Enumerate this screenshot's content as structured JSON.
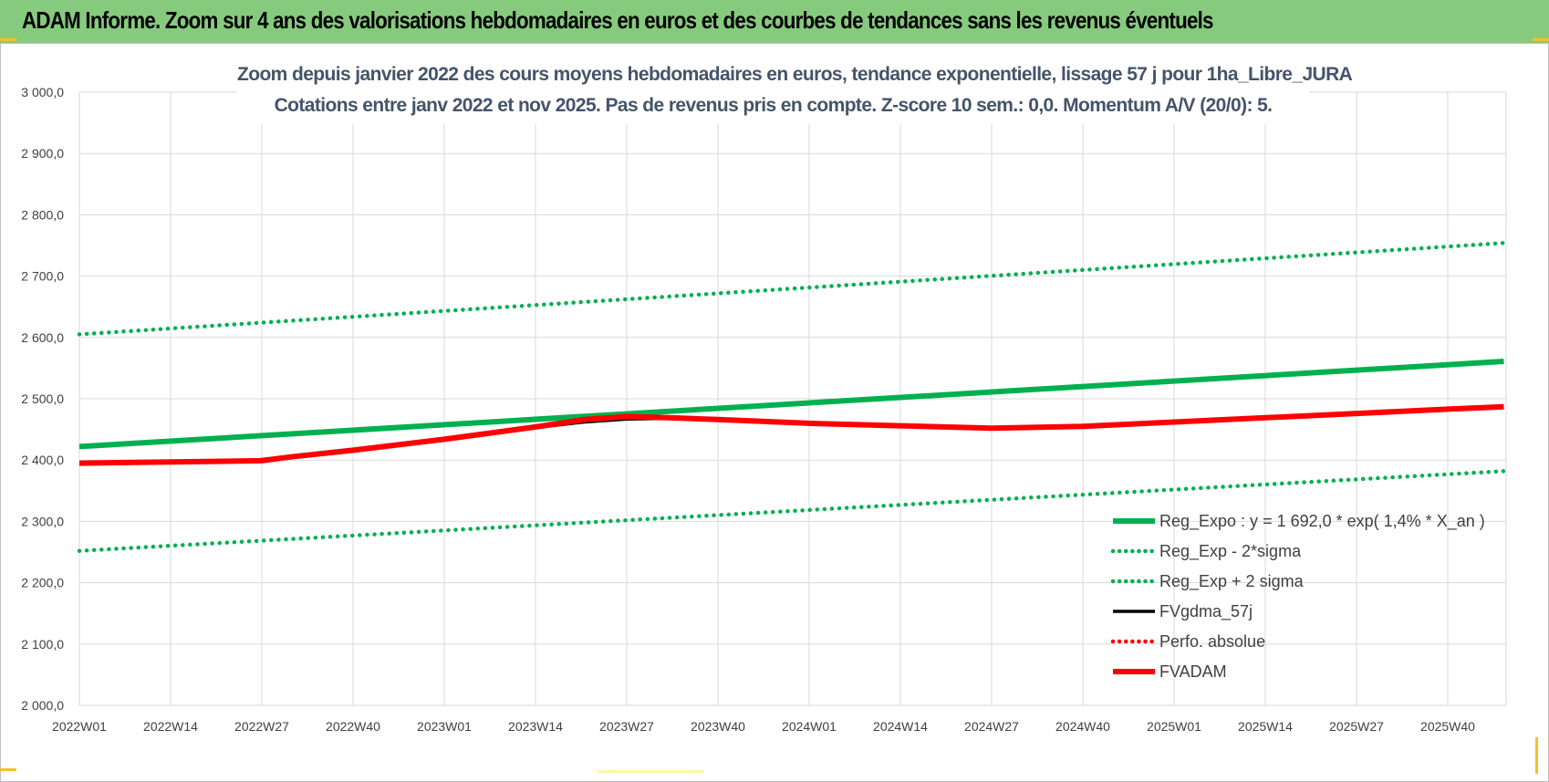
{
  "banner": {
    "title": "ADAM Informe. Zoom sur 4 ans des valorisations hebdomadaires en euros et des courbes de tendances sans les revenus éventuels"
  },
  "colors": {
    "banner": "#86cb7d",
    "trend": "#00b050",
    "band": "#00b050",
    "fvadam": "#ff0000",
    "fvgdma": "#000000",
    "perfo": "#ff0000",
    "title_text": "#44546a",
    "gridline": "#d9d9d9"
  },
  "chart_data": {
    "type": "line",
    "title_line1": "Zoom depuis janvier 2022 des cours moyens hebdomadaires en euros, tendance exponentielle, lissage 57 j pour 1ha_Libre_JURA",
    "title_line2": "Cotations entre janv 2022 et nov 2025. Pas de revenus pris en compte. Z-score 10 sem.: 0,0. Momentum A/V (20/0): 5.",
    "x_axis": {
      "tick_labels": [
        "2022W01",
        "2022W14",
        "2022W27",
        "2022W40",
        "2023W01",
        "2023W14",
        "2023W27",
        "2023W40",
        "2024W01",
        "2024W14",
        "2024W27",
        "2024W40",
        "2025W01",
        "2025W14",
        "2025W27",
        "2025W40"
      ],
      "last_index": 203
    },
    "y_axis": {
      "min": 2000,
      "max": 3000,
      "step": 100,
      "tick_labels": [
        "2 000,0",
        "2 100,0",
        "2 200,0",
        "2 300,0",
        "2 400,0",
        "2 500,0",
        "2 600,0",
        "2 700,0",
        "2 800,0",
        "2 900,0",
        "3 000,0"
      ]
    },
    "grid": true,
    "legend_position": "bottom-right",
    "series": [
      {
        "name": "Reg_Expo : y = 1 692,0 * exp( 1,4% *  X_an )",
        "style": "solid-thick",
        "color": "#00b050",
        "points": [
          [
            0,
            2422
          ],
          [
            203,
            2561
          ]
        ]
      },
      {
        "name": "Reg_Exp - 2*sigma",
        "style": "dotted",
        "color": "#00b050",
        "points": [
          [
            0,
            2252
          ],
          [
            203,
            2382
          ]
        ]
      },
      {
        "name": "Reg_Exp + 2 sigma",
        "style": "dotted",
        "color": "#00b050",
        "points": [
          [
            0,
            2605
          ],
          [
            203,
            2754
          ]
        ]
      },
      {
        "name": "FVgdma_57j",
        "style": "solid",
        "color": "#000000",
        "points": [
          [
            0,
            2395
          ],
          [
            13,
            2396
          ],
          [
            24,
            2398
          ],
          [
            26,
            2401
          ],
          [
            30,
            2406
          ],
          [
            39,
            2417
          ],
          [
            52,
            2435
          ],
          [
            65,
            2453
          ],
          [
            72,
            2462
          ],
          [
            78,
            2467
          ],
          [
            84,
            2468
          ],
          [
            91,
            2466
          ],
          [
            104,
            2460
          ],
          [
            117,
            2455
          ],
          [
            130,
            2453
          ],
          [
            143,
            2455
          ],
          [
            156,
            2462
          ],
          [
            169,
            2469
          ],
          [
            182,
            2476
          ],
          [
            195,
            2483
          ],
          [
            203,
            2487
          ]
        ]
      },
      {
        "name": "Perfo. absolue",
        "style": "dotted",
        "color": "#ff0000",
        "points": []
      },
      {
        "name": "FVADAM",
        "style": "solid-thick",
        "color": "#ff0000",
        "points": [
          [
            0,
            2395
          ],
          [
            13,
            2397
          ],
          [
            26,
            2399
          ],
          [
            30,
            2405
          ],
          [
            39,
            2416
          ],
          [
            52,
            2434
          ],
          [
            65,
            2454
          ],
          [
            72,
            2466
          ],
          [
            78,
            2471
          ],
          [
            84,
            2469
          ],
          [
            91,
            2466
          ],
          [
            104,
            2460
          ],
          [
            117,
            2456
          ],
          [
            130,
            2452
          ],
          [
            143,
            2455
          ],
          [
            156,
            2462
          ],
          [
            169,
            2469
          ],
          [
            182,
            2476
          ],
          [
            195,
            2483
          ],
          [
            203,
            2487
          ]
        ]
      }
    ]
  }
}
